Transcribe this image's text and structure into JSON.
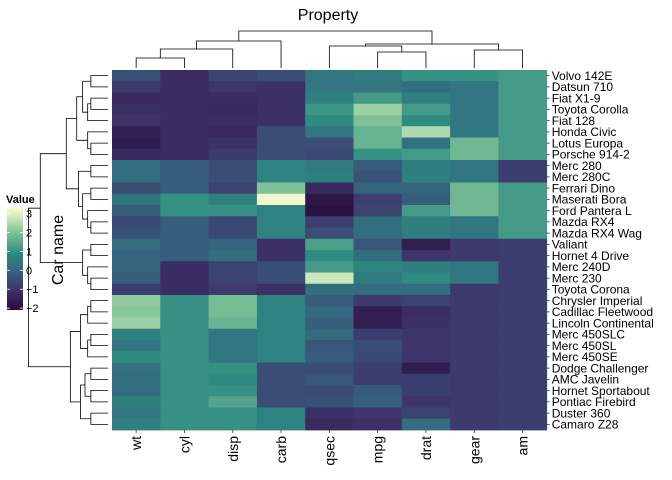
{
  "chart_data": {
    "type": "heatmap",
    "title": "Property",
    "ylabel": "Car name",
    "legend": {
      "title": "Value",
      "ticks": [
        3,
        2,
        1,
        0,
        -1,
        -2
      ],
      "range": [
        -2.1,
        3.3
      ],
      "position": "left"
    },
    "x": [
      "wt",
      "cyl",
      "disp",
      "carb",
      "qsec",
      "mpg",
      "drat",
      "gear",
      "am"
    ],
    "y": [
      "Volvo 142E",
      "Datsun 710",
      "Fiat X1-9",
      "Toyota Corolla",
      "Fiat 128",
      "Honda Civic",
      "Lotus Europa",
      "Porsche 914-2",
      "Merc 280",
      "Merc 280C",
      "Ferrari Dino",
      "Maserati Bora",
      "Ford Pantera L",
      "Mazda RX4",
      "Mazda RX4 Wag",
      "Valiant",
      "Hornet 4 Drive",
      "Merc 240D",
      "Merc 230",
      "Toyota Corona",
      "Chrysler Imperial",
      "Cadillac Fleetwood",
      "Lincoln Continental",
      "Merc 450SLC",
      "Merc 450SL",
      "Merc 450SE",
      "Dodge Challenger",
      "AMC Javelin",
      "Hornet Sportabout",
      "Pontiac Firebird",
      "Duster 360",
      "Camaro Z28"
    ],
    "values": [
      [
        -0.4,
        -1.2,
        -0.7,
        -0.5,
        0.4,
        0.5,
        1.0,
        1.0,
        1.2
      ],
      [
        -0.9,
        -1.2,
        -1.0,
        -1.1,
        0.4,
        0.4,
        0.2,
        0.4,
        1.2
      ],
      [
        -1.3,
        -1.2,
        -1.2,
        -1.1,
        0.6,
        1.2,
        0.6,
        0.4,
        1.2
      ],
      [
        -1.1,
        -1.2,
        -1.3,
        -1.1,
        1.1,
        2.3,
        1.2,
        0.4,
        1.2
      ],
      [
        -1.0,
        -1.2,
        -1.2,
        -1.1,
        0.9,
        2.0,
        0.9,
        0.4,
        1.2
      ],
      [
        -1.6,
        -1.2,
        -1.3,
        -0.5,
        0.4,
        1.7,
        2.5,
        0.4,
        1.2
      ],
      [
        -1.7,
        -1.2,
        -1.1,
        -0.5,
        -0.5,
        1.7,
        0.3,
        1.8,
        1.2
      ],
      [
        -1.3,
        -1.2,
        -0.9,
        -0.5,
        -0.6,
        1.0,
        1.2,
        1.8,
        1.2
      ],
      [
        0.2,
        -0.1,
        -0.5,
        0.7,
        0.5,
        -0.2,
        0.6,
        0.4,
        -0.8
      ],
      [
        0.2,
        -0.1,
        -0.5,
        0.7,
        0.6,
        -0.4,
        0.6,
        0.4,
        -0.8
      ],
      [
        -0.5,
        -0.1,
        -0.7,
        2.0,
        -1.3,
        0.0,
        0.0,
        1.8,
        1.2
      ],
      [
        0.4,
        1.0,
        0.6,
        3.2,
        -1.8,
        -0.8,
        -0.1,
        1.8,
        1.2
      ],
      [
        -0.1,
        1.0,
        1.0,
        0.7,
        -1.9,
        -0.7,
        1.2,
        1.8,
        1.2
      ],
      [
        -0.6,
        -0.1,
        -0.6,
        0.7,
        -0.8,
        0.2,
        0.6,
        0.4,
        1.2
      ],
      [
        -0.4,
        -0.1,
        -0.6,
        0.7,
        -0.5,
        0.2,
        0.6,
        0.4,
        1.2
      ],
      [
        0.2,
        -0.1,
        0.0,
        -1.1,
        1.3,
        -0.3,
        -1.6,
        -0.9,
        -0.8
      ],
      [
        0.0,
        -0.1,
        0.2,
        -1.1,
        0.9,
        0.2,
        -1.0,
        -0.9,
        -0.8
      ],
      [
        0.0,
        -1.2,
        -0.7,
        -0.5,
        1.2,
        0.7,
        0.6,
        0.4,
        -0.8
      ],
      [
        -0.1,
        -1.2,
        -0.7,
        -0.5,
        2.8,
        0.5,
        0.9,
        0.4,
        -0.8
      ],
      [
        -0.8,
        -1.2,
        -0.9,
        -1.1,
        0.2,
        0.2,
        0.2,
        -0.9,
        -0.8
      ],
      [
        2.2,
        1.0,
        1.9,
        0.7,
        -0.2,
        -0.9,
        -0.7,
        -0.9,
        -0.8
      ],
      [
        2.1,
        1.0,
        1.9,
        0.7,
        0.1,
        -1.6,
        -1.2,
        -0.9,
        -0.8
      ],
      [
        2.3,
        1.0,
        1.7,
        0.7,
        -0.1,
        -1.6,
        -1.1,
        -0.9,
        -0.8
      ],
      [
        0.6,
        1.0,
        0.4,
        0.7,
        0.1,
        -0.8,
        -1.0,
        -0.9,
        -0.8
      ],
      [
        0.4,
        1.0,
        0.4,
        0.7,
        -0.3,
        -0.5,
        -1.0,
        -0.9,
        -0.8
      ],
      [
        0.9,
        1.0,
        0.4,
        0.7,
        -0.2,
        -0.6,
        -1.0,
        -0.9,
        -0.8
      ],
      [
        0.3,
        1.0,
        1.0,
        -0.5,
        -0.5,
        -0.8,
        -1.6,
        -0.9,
        -0.8
      ],
      [
        0.2,
        1.0,
        0.9,
        -0.5,
        -0.3,
        -0.8,
        -0.8,
        -0.9,
        -0.8
      ],
      [
        0.2,
        1.0,
        1.0,
        -0.5,
        -0.5,
        -0.2,
        -0.8,
        -0.9,
        -0.8
      ],
      [
        0.6,
        1.0,
        1.4,
        -0.5,
        -0.4,
        -0.1,
        -1.0,
        -0.9,
        -0.8
      ],
      [
        0.4,
        1.0,
        1.0,
        0.7,
        -1.1,
        -1.0,
        -0.7,
        -0.9,
        -0.8
      ],
      [
        0.6,
        1.0,
        1.0,
        0.7,
        -1.3,
        -1.1,
        0.2,
        -0.9,
        -0.8
      ]
    ]
  }
}
